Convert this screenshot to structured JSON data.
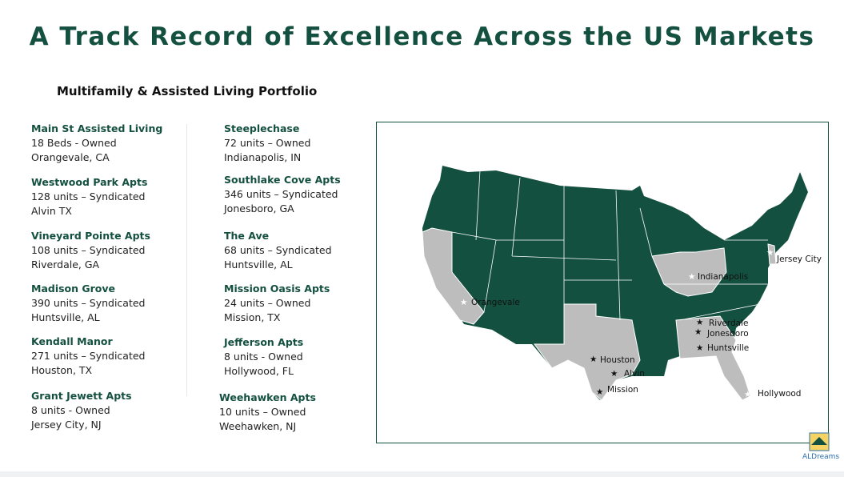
{
  "header": {
    "title": "A Track Record of Excellence Across the US Markets",
    "subtitle": "Multifamily & Assisted Living Portfolio"
  },
  "columns": [
    [
      {
        "name": "Main St Assisted Living",
        "detail": "18 Beds - Owned",
        "location": "Orangevale, CA"
      },
      {
        "name": "Westwood Park Apts",
        "detail": "128 units – Syndicated",
        "location": "Alvin TX"
      },
      {
        "name": "Vineyard Pointe Apts",
        "detail": "108 units – Syndicated",
        "location": "Riverdale, GA"
      },
      {
        "name": "Madison Grove",
        "detail": "390 units – Syndicated",
        "location": "Huntsville, AL"
      },
      {
        "name": "Kendall Manor",
        "detail": "271 units – Syndicated",
        "location": "Houston, TX"
      },
      {
        "name": "Grant Jewett Apts",
        "detail": "8 units - Owned",
        "location": "Jersey City, NJ"
      }
    ],
    [
      {
        "name": "Steeplechase",
        "detail": "72 units – Owned",
        "location": "Indianapolis, IN"
      },
      {
        "name": "Southlake Cove Apts",
        "detail": "346 units – Syndicated",
        "location": "Jonesboro, GA"
      },
      {
        "name": "The Ave",
        "detail": "68 units – Syndicated",
        "location": "Huntsville, AL"
      },
      {
        "name": "Mission Oasis Apts",
        "detail": "24 units – Owned",
        "location": "Mission, TX"
      },
      {
        "name": "Jefferson Apts",
        "detail": "8 units - Owned",
        "location": "Hollywood, FL"
      },
      {
        "name": "Weehawken Apts",
        "detail": "10 units – Owned",
        "location": "Weehawken, NJ"
      }
    ]
  ],
  "map": {
    "labels": [
      "Orangevale",
      "Indianapolis",
      "Jersey City",
      "Hollywood",
      "Riverdale",
      "Jonesboro",
      "Huntsville",
      "Houston",
      "Alvin",
      "Mission"
    ]
  },
  "logo": {
    "text": "ALDreams"
  }
}
